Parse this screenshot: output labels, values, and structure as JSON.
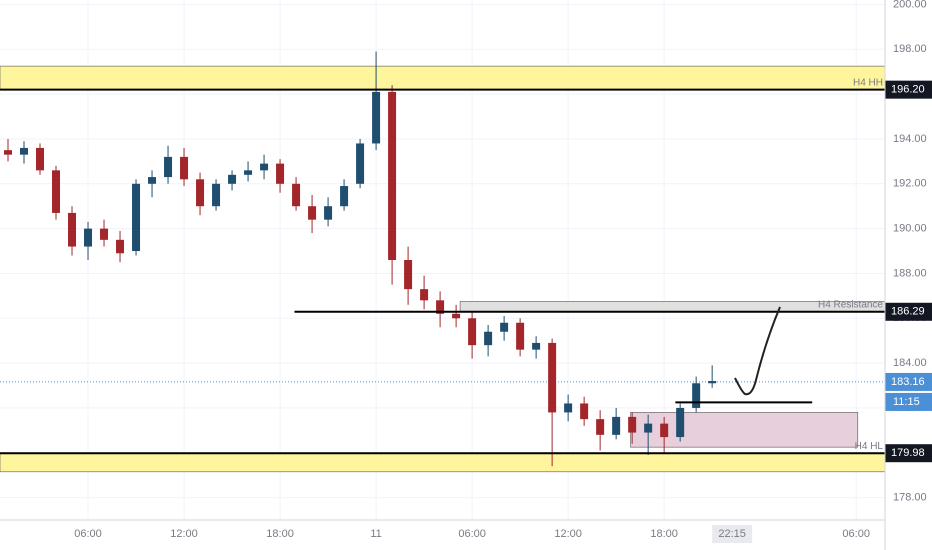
{
  "chart_data": {
    "type": "candlestick",
    "x": [
      1,
      2,
      3,
      4,
      5,
      6,
      7,
      8,
      9,
      10,
      11,
      12,
      13,
      14,
      15,
      16,
      17,
      18,
      19,
      20,
      21,
      22,
      23,
      24,
      25,
      26,
      27,
      28,
      29,
      30,
      31,
      32,
      33,
      34,
      35,
      36,
      37,
      38,
      39,
      40,
      41,
      42,
      43,
      44,
      45
    ],
    "open": [
      193.5,
      193.3,
      193.6,
      192.6,
      190.7,
      189.2,
      190.0,
      189.5,
      189.0,
      192.0,
      192.3,
      193.2,
      192.2,
      191.0,
      192.0,
      192.4,
      192.6,
      192.9,
      192.0,
      191.0,
      190.4,
      191.0,
      192.0,
      193.8,
      196.1,
      188.6,
      187.3,
      186.8,
      186.2,
      186.0,
      184.8,
      185.4,
      185.8,
      184.6,
      184.9,
      181.8,
      182.2,
      181.5,
      180.8,
      181.6,
      180.9,
      181.3,
      180.7,
      182.0,
      183.1
    ],
    "high": [
      194.0,
      193.9,
      193.8,
      192.8,
      191.0,
      190.3,
      190.4,
      189.9,
      192.2,
      192.6,
      193.7,
      193.6,
      192.5,
      192.2,
      192.6,
      193.0,
      193.3,
      193.1,
      192.3,
      191.5,
      191.4,
      192.2,
      194.0,
      197.9,
      196.4,
      189.2,
      187.9,
      187.2,
      186.6,
      186.3,
      185.7,
      186.1,
      186.0,
      185.2,
      185.1,
      182.6,
      182.5,
      181.9,
      182.0,
      181.8,
      181.7,
      181.6,
      182.2,
      183.4,
      183.9
    ],
    "low": [
      193.0,
      192.9,
      192.4,
      190.4,
      188.8,
      188.6,
      189.2,
      188.5,
      188.8,
      191.4,
      192.0,
      191.9,
      190.6,
      190.8,
      191.7,
      192.1,
      192.2,
      191.6,
      190.8,
      189.8,
      190.1,
      190.8,
      191.8,
      193.5,
      187.5,
      186.6,
      186.4,
      185.6,
      185.6,
      184.2,
      184.3,
      185.0,
      184.3,
      184.2,
      179.4,
      181.4,
      181.2,
      180.1,
      180.6,
      180.4,
      179.9,
      180.0,
      180.5,
      181.8,
      182.9
    ],
    "close": [
      193.3,
      193.6,
      192.6,
      190.7,
      189.2,
      190.0,
      189.5,
      188.9,
      192.0,
      192.3,
      193.2,
      192.2,
      191.0,
      192.0,
      192.4,
      192.6,
      192.9,
      192.0,
      191.0,
      190.4,
      191.0,
      191.9,
      193.8,
      196.1,
      188.6,
      187.3,
      186.8,
      186.2,
      186.0,
      184.8,
      185.4,
      185.8,
      184.6,
      184.9,
      181.8,
      182.2,
      181.5,
      180.8,
      181.6,
      180.9,
      181.3,
      180.7,
      182.0,
      183.1,
      183.2
    ],
    "up_color": "#1f4e6e",
    "down_color": "#a3262a",
    "xlim": [
      0.5,
      55.8
    ],
    "ylim": [
      177,
      200.2
    ],
    "yticks": [
      {
        "value": 178,
        "label": "178.00"
      },
      {
        "value": 180,
        "label": "180.00"
      },
      {
        "value": 182,
        "label": "182.00"
      },
      {
        "value": 184,
        "label": "184.00"
      },
      {
        "value": 186,
        "label": "186.00"
      },
      {
        "value": 188,
        "label": "188.00"
      },
      {
        "value": 190,
        "label": "190.00"
      },
      {
        "value": 192,
        "label": "192.00"
      },
      {
        "value": 194,
        "label": "194.00"
      },
      {
        "value": 196,
        "label": "196.00"
      },
      {
        "value": 198,
        "label": "198.00"
      },
      {
        "value": 200,
        "label": "200.00"
      }
    ],
    "xticks": [
      {
        "value": 6,
        "label": "06:00"
      },
      {
        "value": 12,
        "label": "12:00"
      },
      {
        "value": 18,
        "label": "18:00"
      },
      {
        "value": 24,
        "label": "11"
      },
      {
        "value": 30,
        "label": "06:00"
      },
      {
        "value": 36,
        "label": "12:00"
      },
      {
        "value": 42,
        "label": "18:00"
      },
      {
        "value": 54,
        "label": "06:00"
      }
    ],
    "cursor": {
      "value": 46.25,
      "label": "22:15"
    },
    "grid": true,
    "zones": [
      {
        "low": 196.2,
        "high": 197.25,
        "start": 0.5,
        "end": 55.8,
        "color": "#fff59d"
      },
      {
        "low": 179.15,
        "high": 179.98,
        "start": 0.5,
        "end": 55.8,
        "color": "#fff59d"
      },
      {
        "low": 186.29,
        "high": 186.75,
        "start": 29.25,
        "end": 55.8,
        "color": "#e0e0e0"
      },
      {
        "low": 180.25,
        "high": 181.8,
        "start": 39.9,
        "end": 54.1,
        "color": "#e8cfdc"
      }
    ],
    "levels": [
      {
        "value": 196.2,
        "label": "196.20",
        "name": "H4 HH",
        "start": 0.5,
        "tag_color": "#131722"
      },
      {
        "value": 186.29,
        "label": "186.29",
        "name": "H4 Resistance",
        "start": 18.9,
        "tag_color": "#131722"
      },
      {
        "value": 179.98,
        "label": "179.98",
        "name": "H4 HL",
        "start": 0.5,
        "tag_color": "#131722"
      }
    ],
    "segment": {
      "value": 182.25,
      "start": 42.7,
      "end": 51.25
    },
    "last_price": {
      "value": 183.16,
      "label": "183.16",
      "countdown": "11:15",
      "color": "#4b8fd6"
    }
  }
}
